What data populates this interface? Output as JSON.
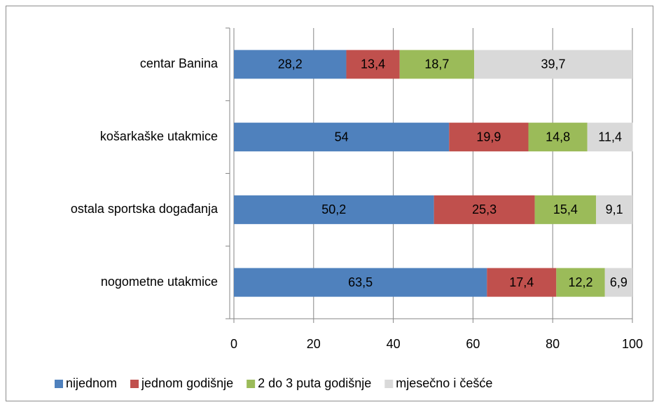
{
  "chart_data": {
    "type": "stacked-bar-horizontal",
    "categories": [
      "centar Banina",
      "košarkaške utakmice",
      "ostala sportska događanja",
      "nogometne utakmice"
    ],
    "series": [
      {
        "name": "nijednom",
        "color": "#4f81bd",
        "values": [
          28.2,
          54,
          50.2,
          63.5
        ],
        "value_labels": [
          "28,2",
          "54",
          "50,2",
          "63,5"
        ]
      },
      {
        "name": "jednom godišnje",
        "color": "#c0504d",
        "values": [
          13.4,
          19.9,
          25.3,
          17.4
        ],
        "value_labels": [
          "13,4",
          "19,9",
          "25,3",
          "17,4"
        ]
      },
      {
        "name": "2 do 3 puta godišnje",
        "color": "#9bbb59",
        "values": [
          18.7,
          14.8,
          15.4,
          12.2
        ],
        "value_labels": [
          "18,7",
          "14,8",
          "15,4",
          "12,2"
        ]
      },
      {
        "name": "mjesečno i češće",
        "color": "#d9d9d9",
        "values": [
          39.7,
          11.4,
          9.1,
          6.9
        ],
        "value_labels": [
          "39,7",
          "11,4",
          "9,1",
          "6,9"
        ]
      }
    ],
    "xlim": [
      0,
      100
    ],
    "xticks": [
      0,
      20,
      40,
      60,
      80,
      100
    ],
    "grid": true,
    "legend": "bottom"
  }
}
